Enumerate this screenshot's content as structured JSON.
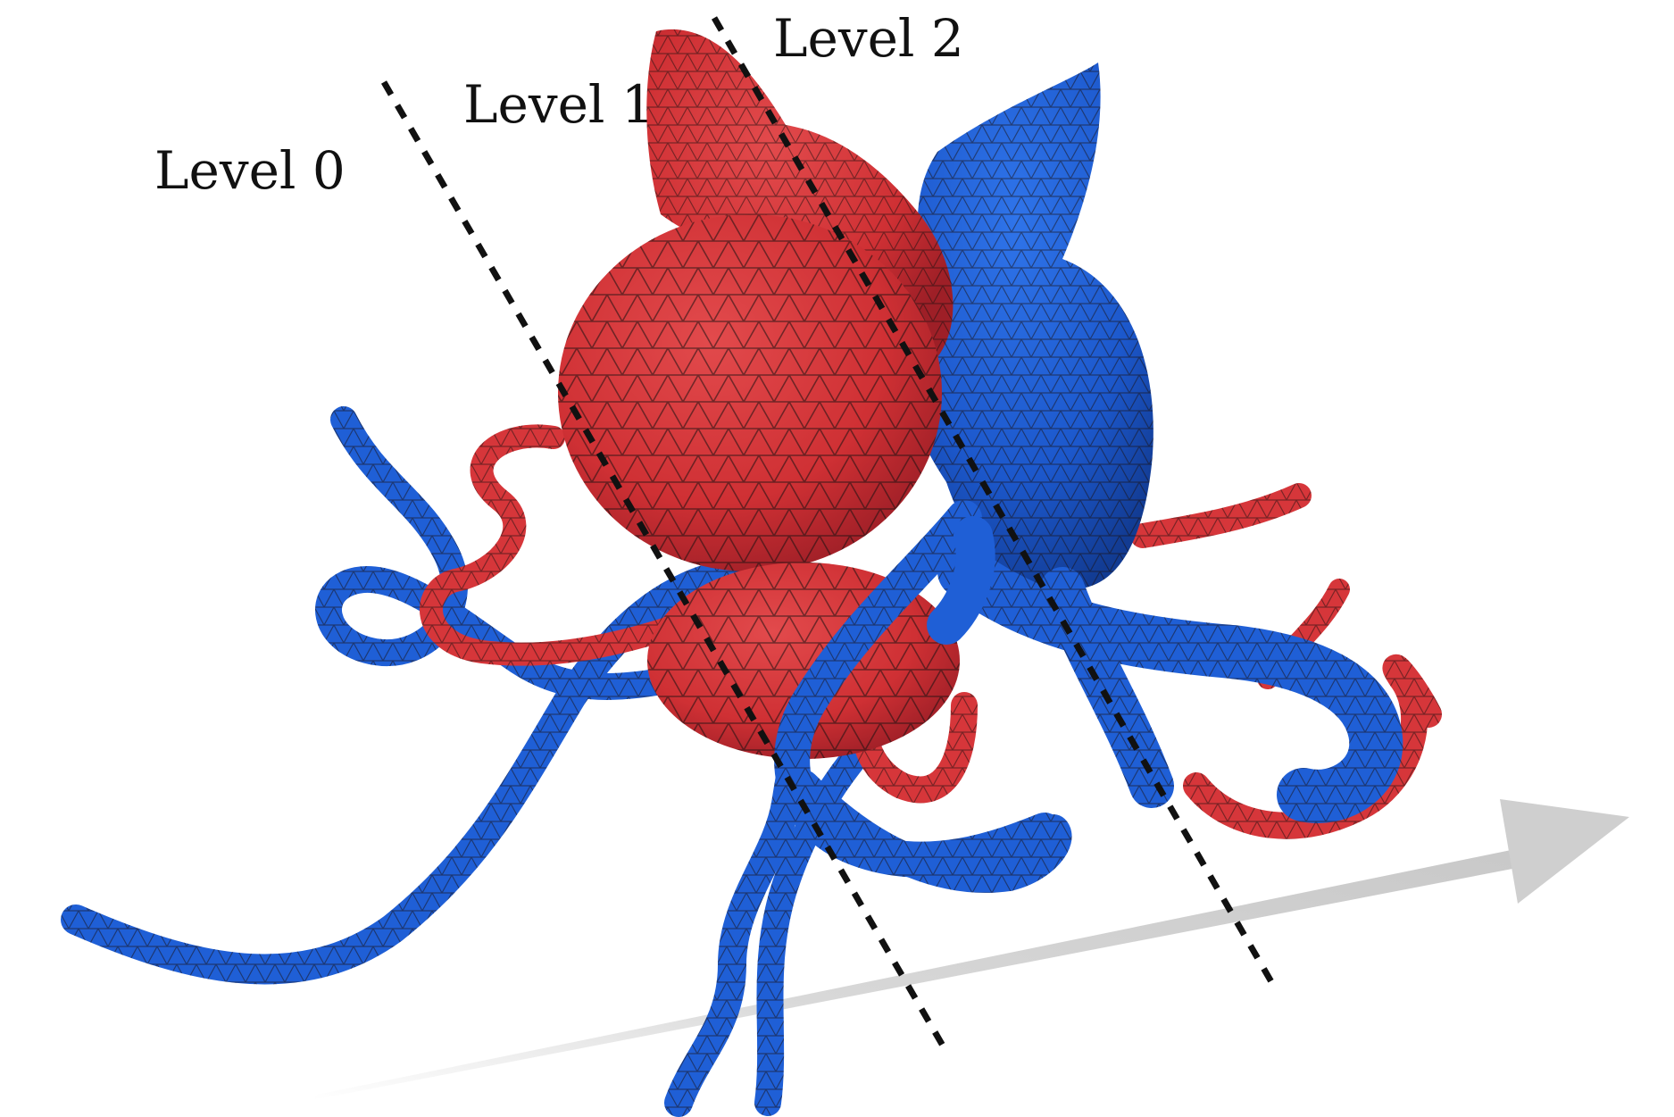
{
  "levels": [
    {
      "label": "Level 0"
    },
    {
      "label": "Level 1"
    },
    {
      "label": "Level 2"
    }
  ],
  "colors": {
    "red_mesh": "#d6363a",
    "red_dark": "#a8222a",
    "blue_mesh": "#1f5fd6",
    "blue_dark": "#143f9e",
    "wire": "#1a1010",
    "divider": "#111111",
    "arrow": "#cfcfcf"
  },
  "icons": {
    "arrow": "direction-arrow-icon"
  }
}
